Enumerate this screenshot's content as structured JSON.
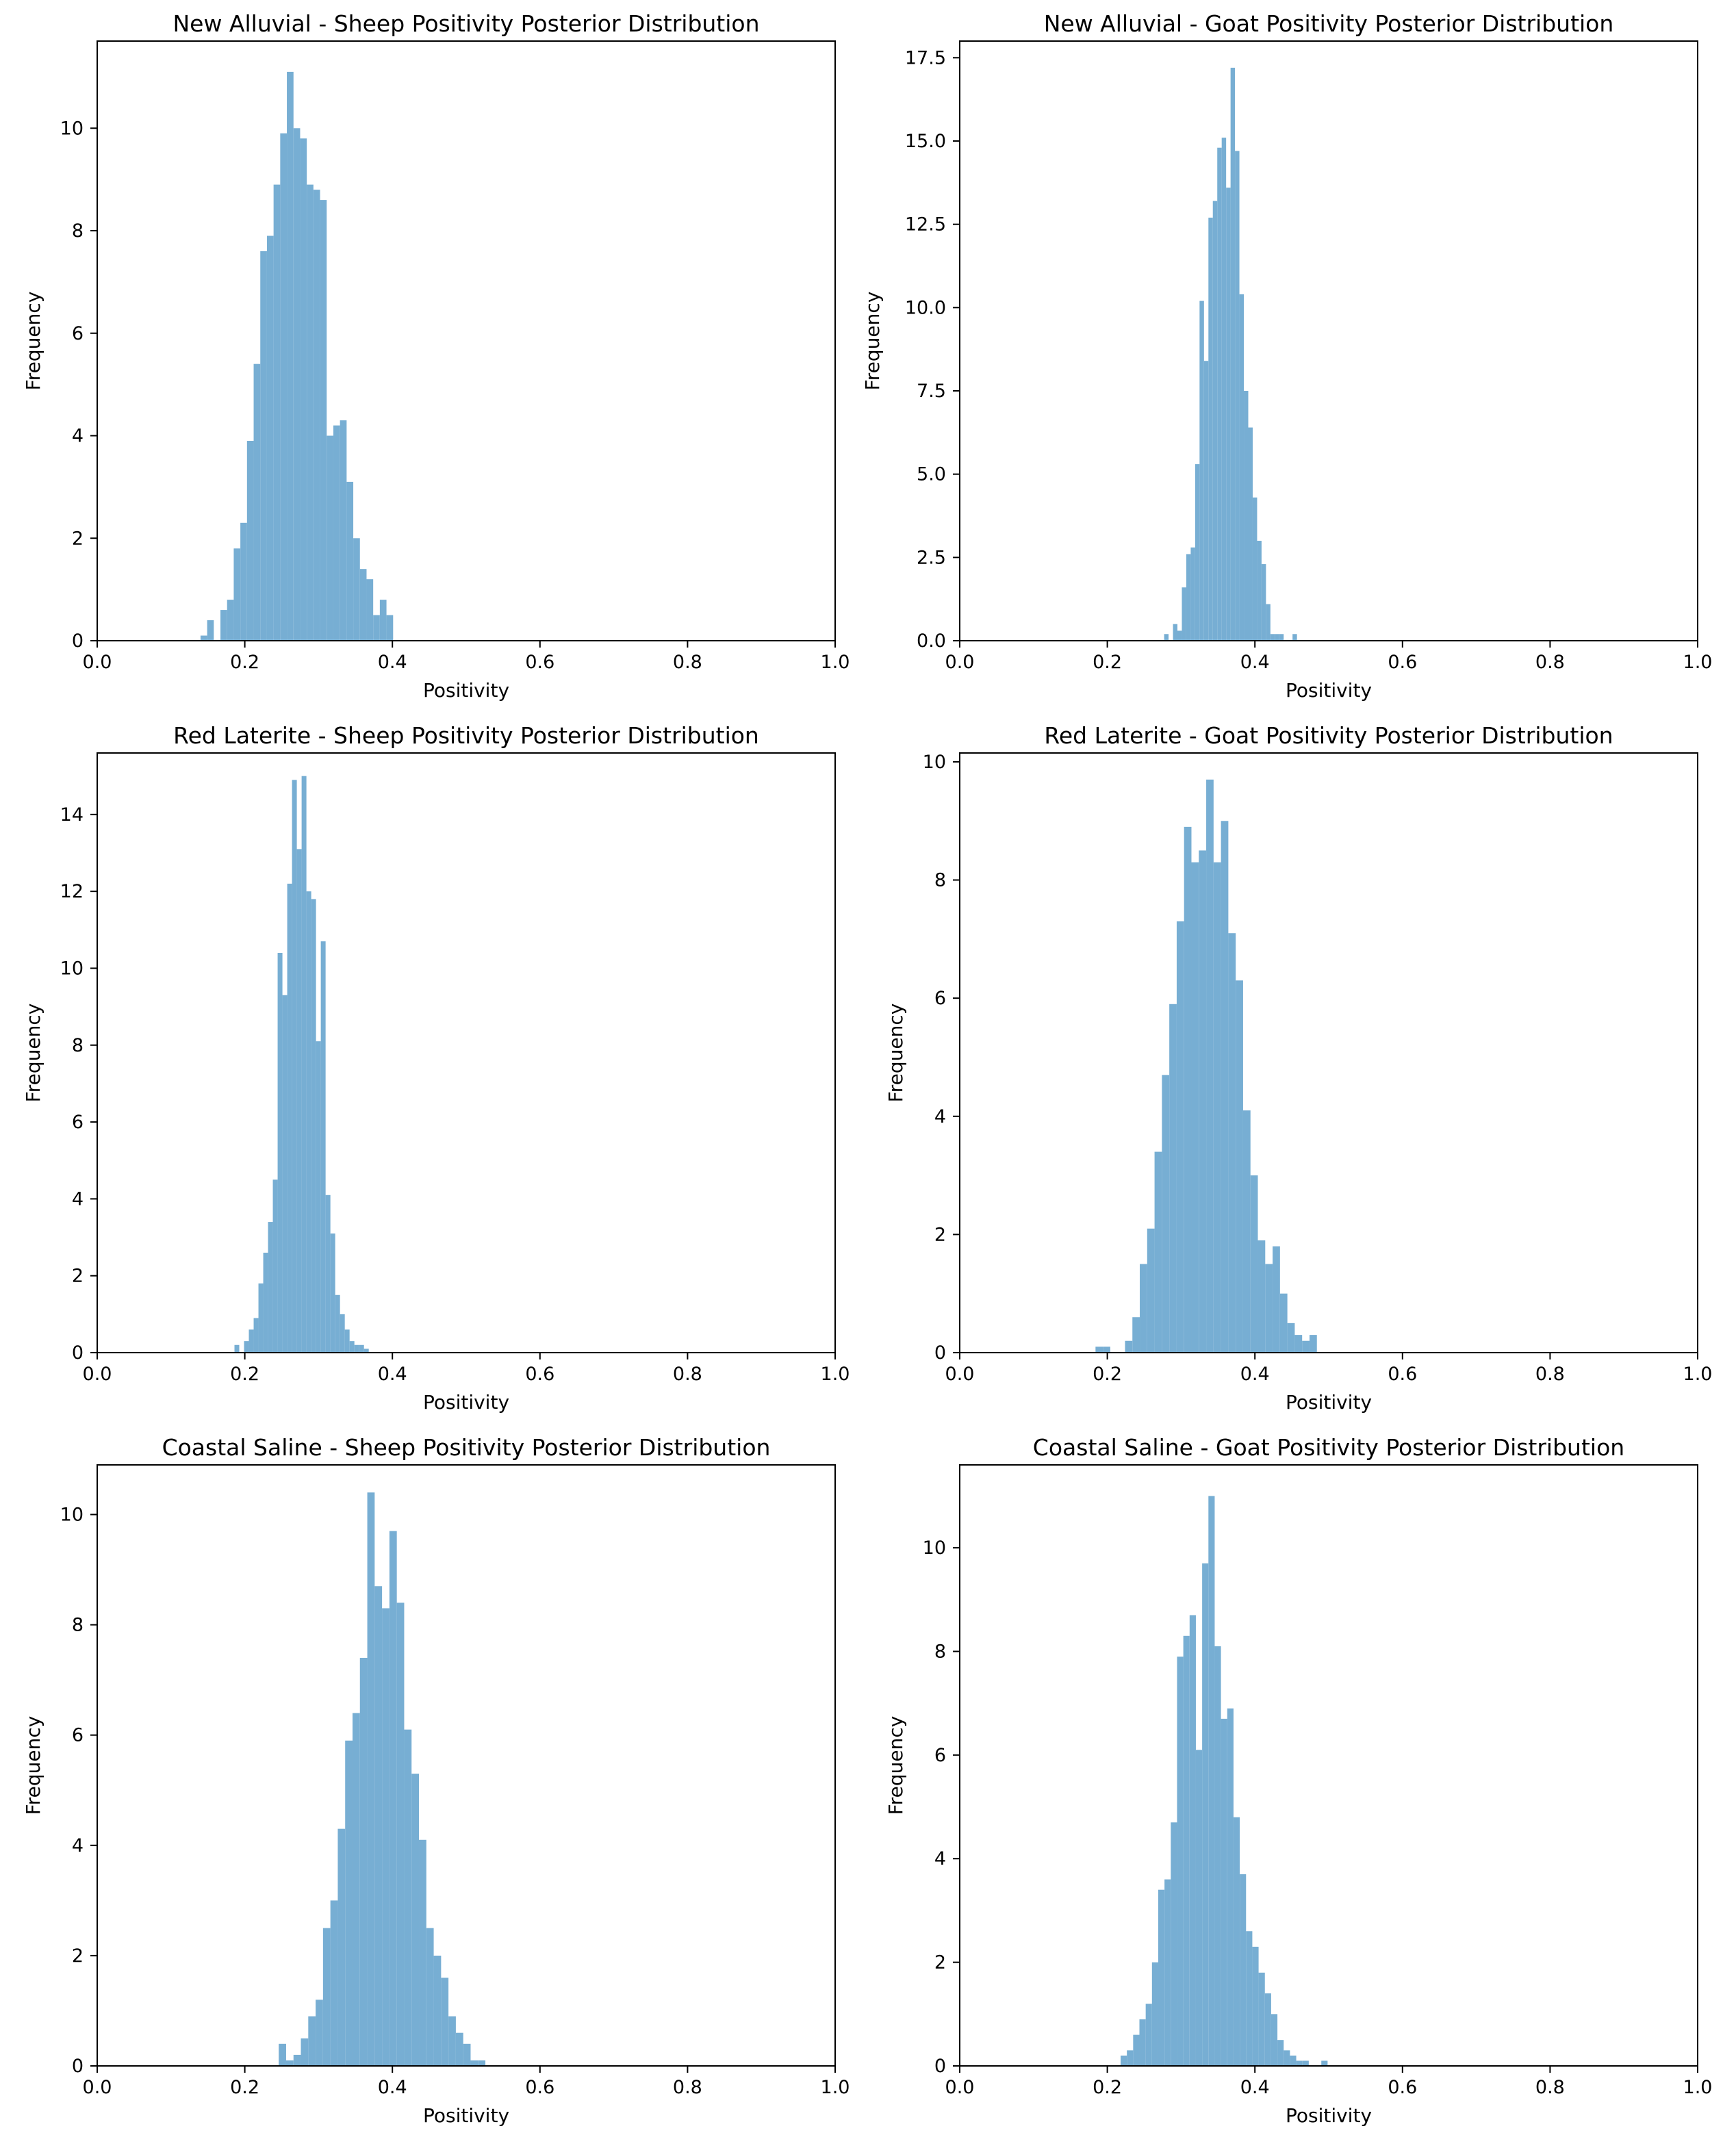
{
  "figure": {
    "bar_color": "#77aed3",
    "axis_color": "#000000",
    "background": "#ffffff"
  },
  "chart_data": [
    {
      "type": "bar",
      "title": "New Alluvial - Sheep Positivity Posterior Distribution",
      "xlabel": "Positivity",
      "ylabel": "Frequency",
      "xlim": [
        0.0,
        1.0
      ],
      "ylim": [
        0,
        11.7
      ],
      "xticks": [
        "0.0",
        "0.2",
        "0.4",
        "0.6",
        "0.8",
        "1.0"
      ],
      "yticks": [
        "0",
        "2",
        "4",
        "6",
        "8",
        "10"
      ],
      "grid": false,
      "bin_width": 0.009,
      "bins": [
        {
          "x": 0.14,
          "y": 0.1
        },
        {
          "x": 0.149,
          "y": 0.4
        },
        {
          "x": 0.158,
          "y": 0.0
        },
        {
          "x": 0.167,
          "y": 0.6
        },
        {
          "x": 0.176,
          "y": 0.8
        },
        {
          "x": 0.185,
          "y": 1.8
        },
        {
          "x": 0.194,
          "y": 2.3
        },
        {
          "x": 0.203,
          "y": 3.9
        },
        {
          "x": 0.212,
          "y": 5.4
        },
        {
          "x": 0.221,
          "y": 7.6
        },
        {
          "x": 0.23,
          "y": 7.9
        },
        {
          "x": 0.239,
          "y": 8.9
        },
        {
          "x": 0.248,
          "y": 9.9
        },
        {
          "x": 0.257,
          "y": 11.1
        },
        {
          "x": 0.266,
          "y": 10.0
        },
        {
          "x": 0.275,
          "y": 9.8
        },
        {
          "x": 0.284,
          "y": 8.9
        },
        {
          "x": 0.293,
          "y": 8.8
        },
        {
          "x": 0.302,
          "y": 8.6
        },
        {
          "x": 0.311,
          "y": 4.0
        },
        {
          "x": 0.32,
          "y": 4.2
        },
        {
          "x": 0.329,
          "y": 4.3
        },
        {
          "x": 0.338,
          "y": 3.1
        },
        {
          "x": 0.347,
          "y": 2.0
        },
        {
          "x": 0.356,
          "y": 1.4
        },
        {
          "x": 0.365,
          "y": 1.2
        },
        {
          "x": 0.374,
          "y": 0.5
        },
        {
          "x": 0.383,
          "y": 0.8
        },
        {
          "x": 0.392,
          "y": 0.5
        }
      ]
    },
    {
      "type": "bar",
      "title": "New Alluvial - Goat Positivity Posterior Distribution",
      "xlabel": "Positivity",
      "ylabel": "Frequency",
      "xlim": [
        0.0,
        1.0
      ],
      "ylim": [
        0,
        18.0
      ],
      "xticks": [
        "0.0",
        "0.2",
        "0.4",
        "0.6",
        "0.8",
        "1.0"
      ],
      "yticks": [
        "0.0",
        "2.5",
        "5.0",
        "7.5",
        "10.0",
        "12.5",
        "15.0",
        "17.5"
      ],
      "grid": false,
      "bin_width": 0.006,
      "bins": [
        {
          "x": 0.277,
          "y": 0.2
        },
        {
          "x": 0.283,
          "y": 0.0
        },
        {
          "x": 0.289,
          "y": 0.5
        },
        {
          "x": 0.295,
          "y": 0.3
        },
        {
          "x": 0.301,
          "y": 1.6
        },
        {
          "x": 0.307,
          "y": 2.6
        },
        {
          "x": 0.313,
          "y": 2.8
        },
        {
          "x": 0.319,
          "y": 5.3
        },
        {
          "x": 0.325,
          "y": 10.2
        },
        {
          "x": 0.331,
          "y": 8.4
        },
        {
          "x": 0.337,
          "y": 12.7
        },
        {
          "x": 0.343,
          "y": 13.2
        },
        {
          "x": 0.349,
          "y": 14.8
        },
        {
          "x": 0.355,
          "y": 15.1
        },
        {
          "x": 0.361,
          "y": 13.6
        },
        {
          "x": 0.367,
          "y": 17.2
        },
        {
          "x": 0.373,
          "y": 14.7
        },
        {
          "x": 0.379,
          "y": 10.4
        },
        {
          "x": 0.385,
          "y": 7.5
        },
        {
          "x": 0.391,
          "y": 6.4
        },
        {
          "x": 0.397,
          "y": 4.3
        },
        {
          "x": 0.403,
          "y": 3.0
        },
        {
          "x": 0.409,
          "y": 2.3
        },
        {
          "x": 0.415,
          "y": 1.1
        },
        {
          "x": 0.421,
          "y": 0.2
        },
        {
          "x": 0.427,
          "y": 0.2
        },
        {
          "x": 0.433,
          "y": 0.2
        },
        {
          "x": 0.439,
          "y": 0.0
        },
        {
          "x": 0.445,
          "y": 0.0
        },
        {
          "x": 0.451,
          "y": 0.2
        }
      ]
    },
    {
      "type": "bar",
      "title": "Red Laterite - Sheep Positivity Posterior Distribution",
      "xlabel": "Positivity",
      "ylabel": "Frequency",
      "xlim": [
        0.0,
        1.0
      ],
      "ylim": [
        0,
        15.6
      ],
      "xticks": [
        "0.0",
        "0.2",
        "0.4",
        "0.6",
        "0.8",
        "1.0"
      ],
      "yticks": [
        "0",
        "2",
        "4",
        "6",
        "8",
        "10",
        "12",
        "14"
      ],
      "grid": false,
      "bin_width": 0.0065,
      "bins": [
        {
          "x": 0.186,
          "y": 0.2
        },
        {
          "x": 0.1925,
          "y": 0.0
        },
        {
          "x": 0.199,
          "y": 0.3
        },
        {
          "x": 0.2055,
          "y": 0.6
        },
        {
          "x": 0.212,
          "y": 0.9
        },
        {
          "x": 0.2185,
          "y": 1.8
        },
        {
          "x": 0.225,
          "y": 2.6
        },
        {
          "x": 0.2315,
          "y": 3.4
        },
        {
          "x": 0.238,
          "y": 4.5
        },
        {
          "x": 0.2445,
          "y": 10.4
        },
        {
          "x": 0.251,
          "y": 9.3
        },
        {
          "x": 0.2575,
          "y": 12.2
        },
        {
          "x": 0.264,
          "y": 14.9
        },
        {
          "x": 0.2705,
          "y": 13.1
        },
        {
          "x": 0.277,
          "y": 15.0
        },
        {
          "x": 0.2835,
          "y": 12.0
        },
        {
          "x": 0.29,
          "y": 11.8
        },
        {
          "x": 0.2965,
          "y": 8.1
        },
        {
          "x": 0.303,
          "y": 10.7
        },
        {
          "x": 0.3095,
          "y": 4.1
        },
        {
          "x": 0.316,
          "y": 3.1
        },
        {
          "x": 0.3225,
          "y": 1.5
        },
        {
          "x": 0.329,
          "y": 1.0
        },
        {
          "x": 0.3355,
          "y": 0.6
        },
        {
          "x": 0.342,
          "y": 0.3
        },
        {
          "x": 0.3485,
          "y": 0.2
        },
        {
          "x": 0.355,
          "y": 0.2
        },
        {
          "x": 0.3615,
          "y": 0.1
        }
      ]
    },
    {
      "type": "bar",
      "title": "Red Laterite - Goat Positivity Posterior Distribution",
      "xlabel": "Positivity",
      "ylabel": "Frequency",
      "xlim": [
        0.0,
        1.0
      ],
      "ylim": [
        0,
        10.15
      ],
      "xticks": [
        "0.0",
        "0.2",
        "0.4",
        "0.6",
        "0.8",
        "1.0"
      ],
      "yticks": [
        "0",
        "2",
        "4",
        "6",
        "8",
        "10"
      ],
      "grid": false,
      "bin_width": 0.01,
      "bins": [
        {
          "x": 0.184,
          "y": 0.1
        },
        {
          "x": 0.194,
          "y": 0.1
        },
        {
          "x": 0.204,
          "y": 0.0
        },
        {
          "x": 0.214,
          "y": 0.0
        },
        {
          "x": 0.224,
          "y": 0.2
        },
        {
          "x": 0.234,
          "y": 0.6
        },
        {
          "x": 0.244,
          "y": 1.5
        },
        {
          "x": 0.254,
          "y": 2.1
        },
        {
          "x": 0.264,
          "y": 3.4
        },
        {
          "x": 0.274,
          "y": 4.7
        },
        {
          "x": 0.284,
          "y": 5.9
        },
        {
          "x": 0.294,
          "y": 7.3
        },
        {
          "x": 0.304,
          "y": 8.9
        },
        {
          "x": 0.314,
          "y": 8.3
        },
        {
          "x": 0.324,
          "y": 8.5
        },
        {
          "x": 0.334,
          "y": 9.7
        },
        {
          "x": 0.344,
          "y": 8.3
        },
        {
          "x": 0.354,
          "y": 9.0
        },
        {
          "x": 0.364,
          "y": 7.1
        },
        {
          "x": 0.374,
          "y": 6.3
        },
        {
          "x": 0.384,
          "y": 4.1
        },
        {
          "x": 0.394,
          "y": 3.0
        },
        {
          "x": 0.404,
          "y": 1.9
        },
        {
          "x": 0.414,
          "y": 1.5
        },
        {
          "x": 0.424,
          "y": 1.8
        },
        {
          "x": 0.434,
          "y": 1.0
        },
        {
          "x": 0.444,
          "y": 0.5
        },
        {
          "x": 0.454,
          "y": 0.3
        },
        {
          "x": 0.464,
          "y": 0.2
        },
        {
          "x": 0.474,
          "y": 0.3
        }
      ]
    },
    {
      "type": "bar",
      "title": "Coastal Saline - Sheep Positivity Posterior Distribution",
      "xlabel": "Positivity",
      "ylabel": "Frequency",
      "xlim": [
        0.0,
        1.0
      ],
      "ylim": [
        0,
        10.9
      ],
      "xticks": [
        "0.0",
        "0.2",
        "0.4",
        "0.6",
        "0.8",
        "1.0"
      ],
      "yticks": [
        "0",
        "2",
        "4",
        "6",
        "8",
        "10"
      ],
      "grid": false,
      "bin_width": 0.01,
      "bins": [
        {
          "x": 0.246,
          "y": 0.4
        },
        {
          "x": 0.256,
          "y": 0.1
        },
        {
          "x": 0.266,
          "y": 0.2
        },
        {
          "x": 0.276,
          "y": 0.5
        },
        {
          "x": 0.286,
          "y": 0.9
        },
        {
          "x": 0.296,
          "y": 1.2
        },
        {
          "x": 0.306,
          "y": 2.5
        },
        {
          "x": 0.316,
          "y": 3.0
        },
        {
          "x": 0.326,
          "y": 4.3
        },
        {
          "x": 0.336,
          "y": 5.9
        },
        {
          "x": 0.346,
          "y": 6.4
        },
        {
          "x": 0.356,
          "y": 7.4
        },
        {
          "x": 0.366,
          "y": 10.4
        },
        {
          "x": 0.376,
          "y": 8.7
        },
        {
          "x": 0.386,
          "y": 8.3
        },
        {
          "x": 0.396,
          "y": 9.7
        },
        {
          "x": 0.406,
          "y": 8.4
        },
        {
          "x": 0.416,
          "y": 6.1
        },
        {
          "x": 0.426,
          "y": 5.3
        },
        {
          "x": 0.436,
          "y": 4.1
        },
        {
          "x": 0.446,
          "y": 2.5
        },
        {
          "x": 0.456,
          "y": 2.0
        },
        {
          "x": 0.466,
          "y": 1.6
        },
        {
          "x": 0.476,
          "y": 0.9
        },
        {
          "x": 0.486,
          "y": 0.6
        },
        {
          "x": 0.496,
          "y": 0.4
        },
        {
          "x": 0.506,
          "y": 0.1
        },
        {
          "x": 0.516,
          "y": 0.1
        }
      ]
    },
    {
      "type": "bar",
      "title": "Coastal Saline - Goat Positivity Posterior Distribution",
      "xlabel": "Positivity",
      "ylabel": "Frequency",
      "xlim": [
        0.0,
        1.0
      ],
      "ylim": [
        0,
        11.6
      ],
      "xticks": [
        "0.0",
        "0.2",
        "0.4",
        "0.6",
        "0.8",
        "1.0"
      ],
      "yticks": [
        "0",
        "2",
        "4",
        "6",
        "8",
        "10"
      ],
      "grid": false,
      "bin_width": 0.0085,
      "bins": [
        {
          "x": 0.218,
          "y": 0.2
        },
        {
          "x": 0.2265,
          "y": 0.3
        },
        {
          "x": 0.235,
          "y": 0.6
        },
        {
          "x": 0.2435,
          "y": 0.9
        },
        {
          "x": 0.252,
          "y": 1.2
        },
        {
          "x": 0.2605,
          "y": 2.0
        },
        {
          "x": 0.269,
          "y": 3.4
        },
        {
          "x": 0.2775,
          "y": 3.6
        },
        {
          "x": 0.286,
          "y": 4.7
        },
        {
          "x": 0.2945,
          "y": 7.9
        },
        {
          "x": 0.303,
          "y": 8.3
        },
        {
          "x": 0.3115,
          "y": 8.7
        },
        {
          "x": 0.32,
          "y": 6.1
        },
        {
          "x": 0.3285,
          "y": 9.7
        },
        {
          "x": 0.337,
          "y": 11.0
        },
        {
          "x": 0.3455,
          "y": 8.1
        },
        {
          "x": 0.354,
          "y": 6.7
        },
        {
          "x": 0.3625,
          "y": 6.9
        },
        {
          "x": 0.371,
          "y": 4.8
        },
        {
          "x": 0.3795,
          "y": 3.7
        },
        {
          "x": 0.388,
          "y": 2.6
        },
        {
          "x": 0.3965,
          "y": 2.3
        },
        {
          "x": 0.405,
          "y": 1.8
        },
        {
          "x": 0.4135,
          "y": 1.4
        },
        {
          "x": 0.422,
          "y": 1.0
        },
        {
          "x": 0.4305,
          "y": 0.5
        },
        {
          "x": 0.439,
          "y": 0.3
        },
        {
          "x": 0.4475,
          "y": 0.2
        },
        {
          "x": 0.456,
          "y": 0.1
        },
        {
          "x": 0.4645,
          "y": 0.1
        },
        {
          "x": 0.473,
          "y": 0.0
        },
        {
          "x": 0.4815,
          "y": 0.0
        },
        {
          "x": 0.49,
          "y": 0.1
        }
      ]
    }
  ]
}
